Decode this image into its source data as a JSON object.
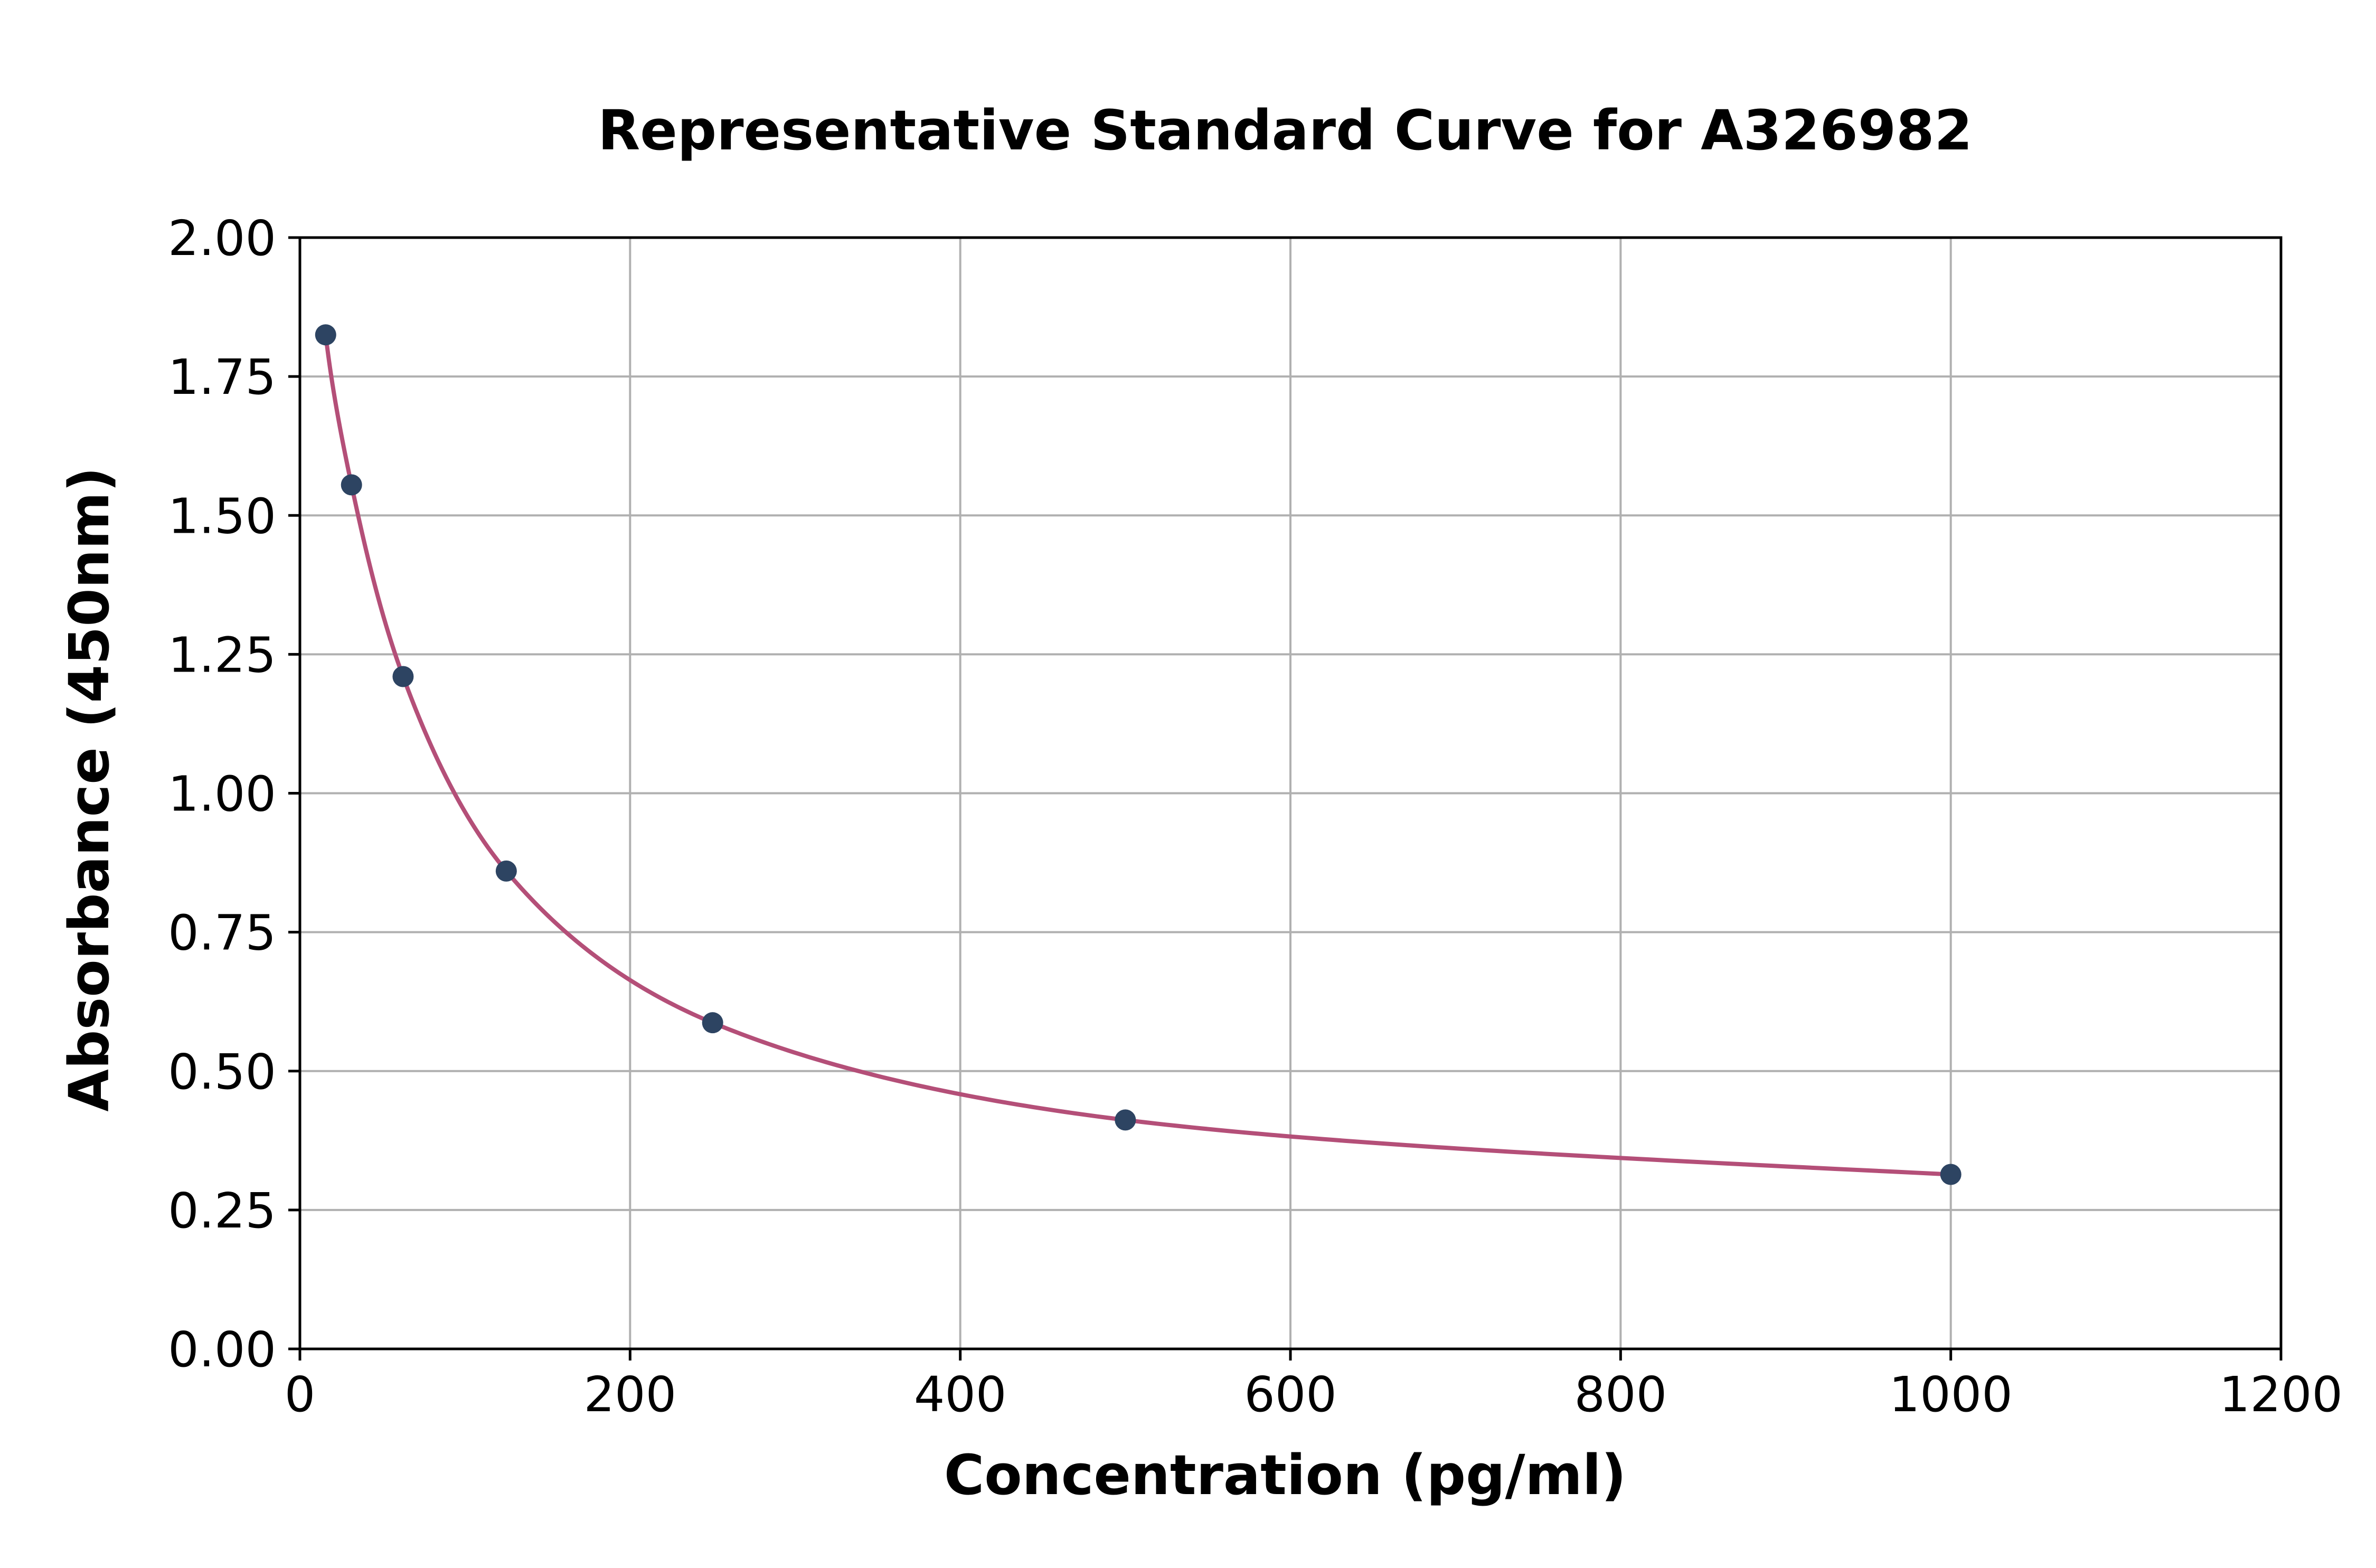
{
  "chart_data": {
    "type": "scatter",
    "title": "Representative Standard Curve for A326982",
    "xlabel": "Concentration (pg/ml)",
    "ylabel": "Absorbance (450nm)",
    "xlim": [
      0,
      1200
    ],
    "ylim": [
      0,
      2.0
    ],
    "x_ticks": [
      "0",
      "200",
      "400",
      "600",
      "800",
      "1000",
      "1200"
    ],
    "y_ticks": [
      "0.00",
      "0.25",
      "0.50",
      "0.75",
      "1.00",
      "1.25",
      "1.50",
      "1.75",
      "2.00"
    ],
    "grid": true,
    "series": [
      {
        "type": "scatter",
        "x": [
          15.6,
          31.25,
          62.5,
          125,
          250,
          500,
          1000
        ],
        "y": [
          1.825,
          1.555,
          1.21,
          0.86,
          0.587,
          0.412,
          0.314
        ]
      },
      {
        "type": "line",
        "fit": "power_offset",
        "x": [
          15.6,
          31.25,
          62.5,
          125,
          250,
          500,
          1000
        ],
        "y": [
          1.825,
          1.555,
          1.21,
          0.86,
          0.587,
          0.412,
          0.314
        ]
      }
    ],
    "colors": {
      "points": "#2d4462",
      "curve": "#b44f78",
      "grid": "#b0b0b0",
      "axes": "#000000"
    }
  }
}
